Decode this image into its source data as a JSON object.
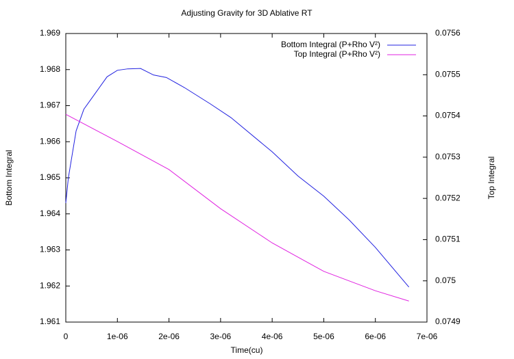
{
  "chart_data": {
    "type": "line",
    "title": "Adjusting Gravity for 3D Ablative RT",
    "xlabel": "Time(cu)",
    "ylabel": "Bottom Integral",
    "y2label": "Top Integral",
    "xlim": [
      0,
      7e-06
    ],
    "xticks": [
      0,
      {
        "value": 1e-06,
        "label": "1e-06"
      },
      {
        "value": 2e-06,
        "label": "2e-06"
      },
      {
        "value": 3e-06,
        "label": "3e-06"
      },
      {
        "value": 4e-06,
        "label": "4e-06"
      },
      {
        "value": 5e-06,
        "label": "5e-06"
      },
      {
        "value": 6e-06,
        "label": "6e-06"
      },
      {
        "value": 7e-06,
        "label": "7e-06"
      }
    ],
    "ylim": [
      1.961,
      1.969
    ],
    "yticks": [
      1.961,
      1.962,
      1.963,
      1.964,
      1.965,
      1.966,
      1.967,
      1.968,
      1.969
    ],
    "y2lim": [
      0.0749,
      0.0756
    ],
    "y2ticks": [
      0.0749,
      0.075,
      0.0751,
      0.0752,
      0.0753,
      0.0754,
      0.0755,
      0.0756
    ],
    "grid": false,
    "legend": "top right",
    "series": [
      {
        "name": "Bottom Integral (P+Rho V²)",
        "color": "#2020e0",
        "x": [
          0,
          5e-08,
          2e-07,
          3.5e-07,
          6e-07,
          8e-07,
          1e-06,
          1.2e-06,
          1.45e-06,
          1.7e-06,
          1.95e-06,
          2.3e-06,
          2.8e-06,
          3.2e-06,
          4e-06,
          4.5e-06,
          5e-06,
          5.5e-06,
          6e-06,
          6.65e-06
        ],
        "values": [
          1.9643,
          1.965,
          1.9663,
          1.9669,
          1.9674,
          1.9678,
          1.96798,
          1.96802,
          1.96803,
          1.96785,
          1.96778,
          1.9675,
          1.96705,
          1.96667,
          1.96572,
          1.96505,
          1.96449,
          1.96382,
          1.96307,
          1.96197
        ]
      },
      {
        "name": "Top Integral (P+Rho V²)",
        "color": "#e020e0",
        "axis": "y2",
        "x": [
          0,
          1e-06,
          2e-06,
          3e-06,
          4e-06,
          5e-06,
          6e-06,
          6.65e-06
        ],
        "values": [
          0.075404,
          0.075338,
          0.07527,
          0.075175,
          0.075092,
          0.075023,
          0.074976,
          0.074951
        ]
      }
    ]
  }
}
